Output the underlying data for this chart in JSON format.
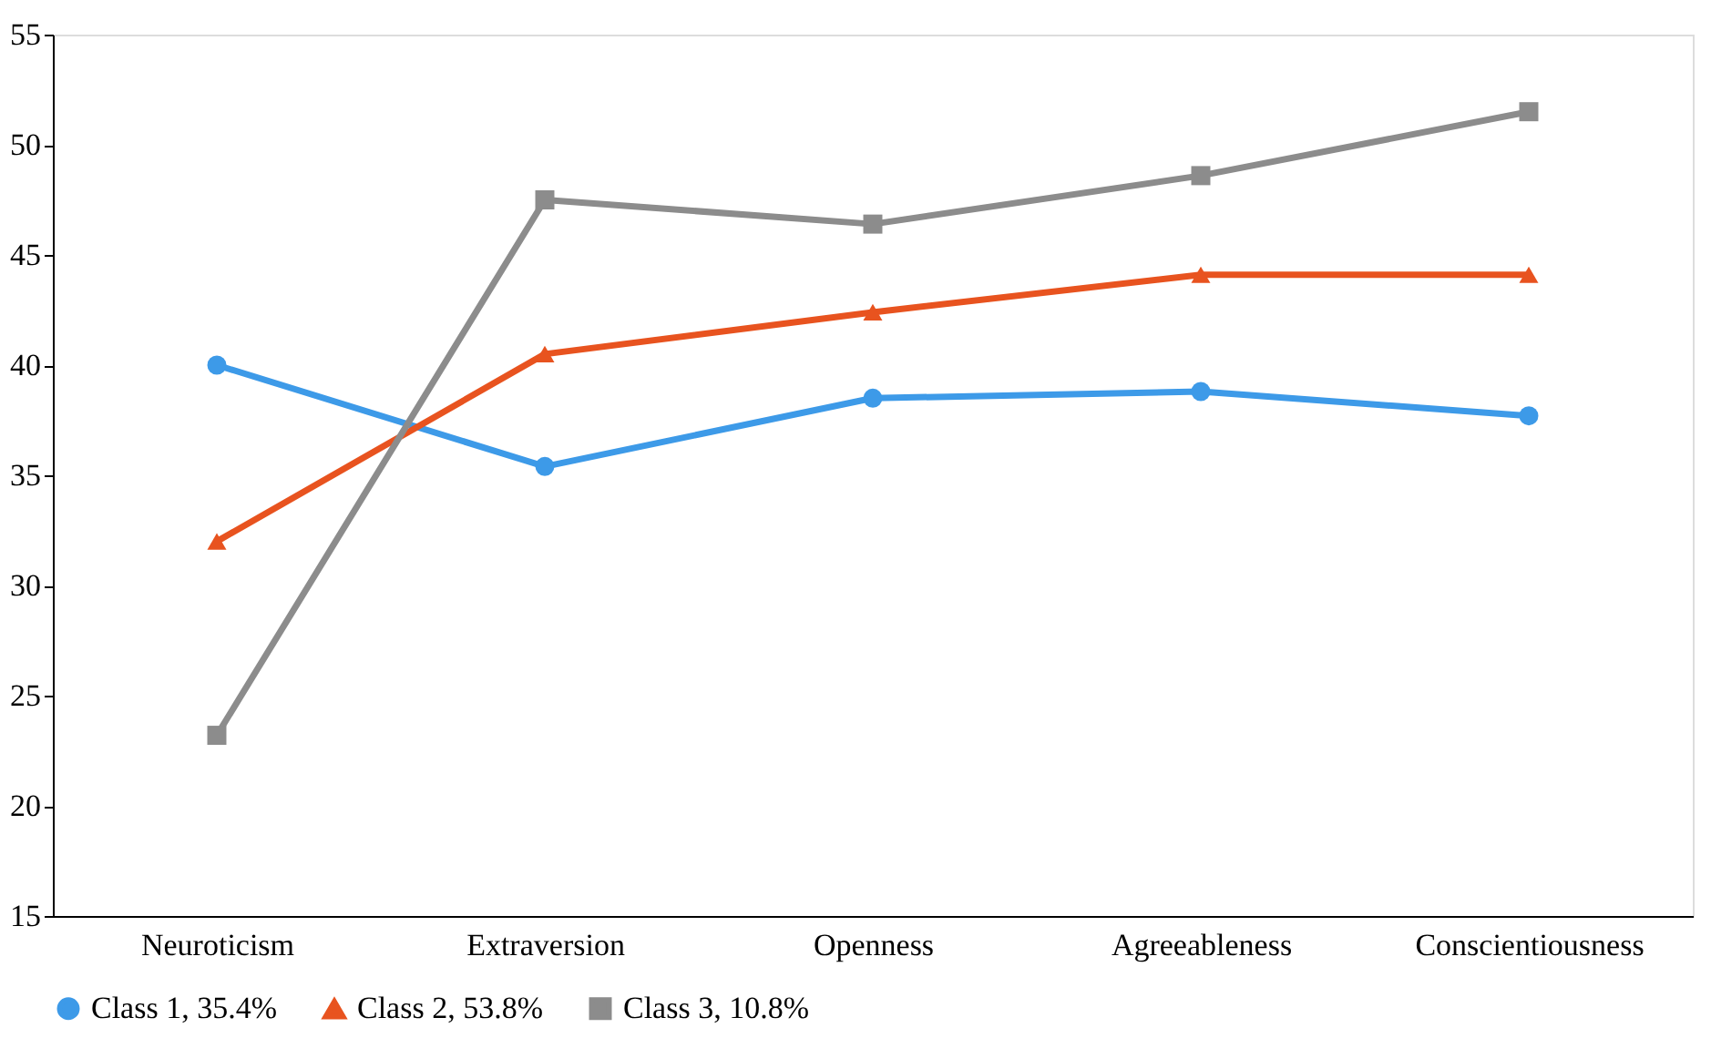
{
  "chart_data": {
    "type": "line",
    "categories": [
      "Neuroticism",
      "Extraversion",
      "Openness",
      "Agreeableness",
      "Conscientiousness"
    ],
    "series": [
      {
        "name": "Class 1, 35.4%",
        "color": "#3d9ae8",
        "marker": "circle",
        "values": [
          40,
          35.4,
          38.5,
          38.8,
          37.7
        ]
      },
      {
        "name": "Class 2, 53.8%",
        "color": "#e8531f",
        "marker": "triangle",
        "values": [
          32,
          40.5,
          42.4,
          44.1,
          44.1
        ]
      },
      {
        "name": "Class 3, 10.8%",
        "color": "#8c8c8c",
        "marker": "square",
        "values": [
          23.2,
          47.5,
          46.4,
          48.6,
          51.5
        ]
      }
    ],
    "ylim": [
      15,
      55
    ],
    "yticks": [
      15,
      20,
      25,
      30,
      35,
      40,
      45,
      50,
      55
    ],
    "grid": false,
    "legend": "bottom",
    "line_style": "solid"
  }
}
